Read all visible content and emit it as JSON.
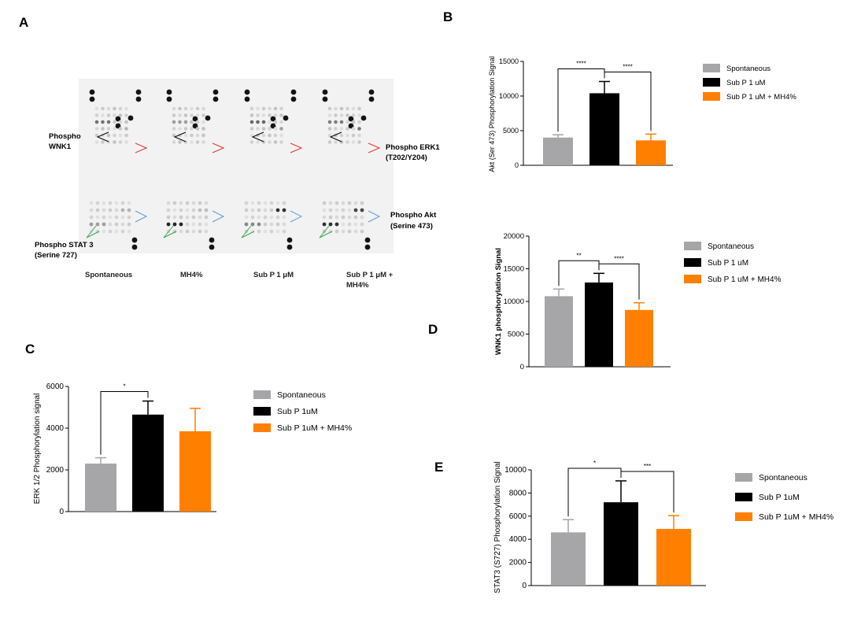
{
  "panel_letters": {
    "a": "A",
    "b": "B",
    "c": "C",
    "d": "D",
    "e": "E"
  },
  "colors": {
    "spontaneous": "#a6a6a8",
    "subp": "#000000",
    "subp_mh": "#ff8000"
  },
  "blot": {
    "labels": {
      "wnk1": [
        "Phospho",
        "WNK1"
      ],
      "erk1": [
        "Phospho ERK1",
        "(T202/Y204)"
      ],
      "akt": [
        "Phospho Akt",
        "(Serine 473)"
      ],
      "stat3": [
        "Phospho STAT 3",
        "(Serine 727)"
      ]
    },
    "conditions": [
      "Spontaneous",
      "MH4%",
      "Sub P 1 μM",
      "Sub P 1 μM +|MH4%"
    ],
    "arrow_colors": {
      "wnk1": "#000000",
      "erk1": "#e03030",
      "akt": "#5b9bd5",
      "stat3": "#34a853"
    }
  },
  "chart_data": [
    {
      "id": "B",
      "type": "bar",
      "categories": [
        "Spontaneous",
        "Sub P 1 uM",
        "Sub P 1 uM + MH4%"
      ],
      "values": [
        4000,
        10400,
        3600
      ],
      "errors": [
        400,
        1700,
        900
      ],
      "ylabel": "Akt (Ser 473) Phosphorylation Signal",
      "ylim": [
        0,
        15000
      ],
      "yticks": [
        0,
        5000,
        10000,
        15000
      ],
      "legend": [
        "Spontaneous",
        "Sub P 1 uM",
        "Sub P 1 uM + MH4%"
      ],
      "significance": [
        {
          "from": 0,
          "to": 1,
          "label": "****"
        },
        {
          "from": 1,
          "to": 2,
          "label": "****"
        }
      ]
    },
    {
      "id": "C",
      "type": "bar",
      "categories": [
        "Spontaneous",
        "Sub P 1uM",
        "Sub P 1uM + MH4%"
      ],
      "values": [
        2300,
        4650,
        3850
      ],
      "errors": [
        280,
        650,
        1100
      ],
      "ylabel": "ERK 1/2 Phosphorylation signal",
      "ylim": [
        0,
        6000
      ],
      "yticks": [
        0,
        2000,
        4000,
        6000
      ],
      "legend": [
        "Spontaneous",
        "Sub P 1uM",
        "Sub P 1uM + MH4%"
      ],
      "significance": [
        {
          "from": 0,
          "to": 1,
          "label": "*"
        }
      ]
    },
    {
      "id": "D",
      "type": "bar",
      "categories": [
        "Spontaneous",
        "Sub P 1 uM",
        "Sub P 1 uM + MH4%"
      ],
      "values": [
        10800,
        12900,
        8700
      ],
      "errors": [
        1100,
        1400,
        1100
      ],
      "ylabel": "WNK1 phosphorylation Signal",
      "ylim": [
        0,
        20000
      ],
      "yticks": [
        0,
        5000,
        10000,
        15000,
        20000
      ],
      "legend": [
        "Spontaneous",
        "Sub P 1 uM",
        "Sub P 1 uM + MH4%"
      ],
      "significance": [
        {
          "from": 0,
          "to": 1,
          "label": "**"
        },
        {
          "from": 1,
          "to": 2,
          "label": "****"
        }
      ]
    },
    {
      "id": "E",
      "type": "bar",
      "categories": [
        "Spontaneous",
        "Sub P 1uM",
        "Sub P 1uM + MH4%"
      ],
      "values": [
        4600,
        7200,
        4900
      ],
      "errors": [
        1100,
        1850,
        1150
      ],
      "ylabel": "STAT3 (S727) Phosphorylation Signal",
      "ylim": [
        0,
        10000
      ],
      "yticks": [
        0,
        2000,
        4000,
        6000,
        8000,
        10000
      ],
      "legend": [
        "Spontaneous",
        "Sub P 1uM",
        "Sub P 1uM + MH4%"
      ],
      "significance": [
        {
          "from": 0,
          "to": 1,
          "label": "*"
        },
        {
          "from": 1,
          "to": 2,
          "label": "***"
        }
      ]
    }
  ]
}
